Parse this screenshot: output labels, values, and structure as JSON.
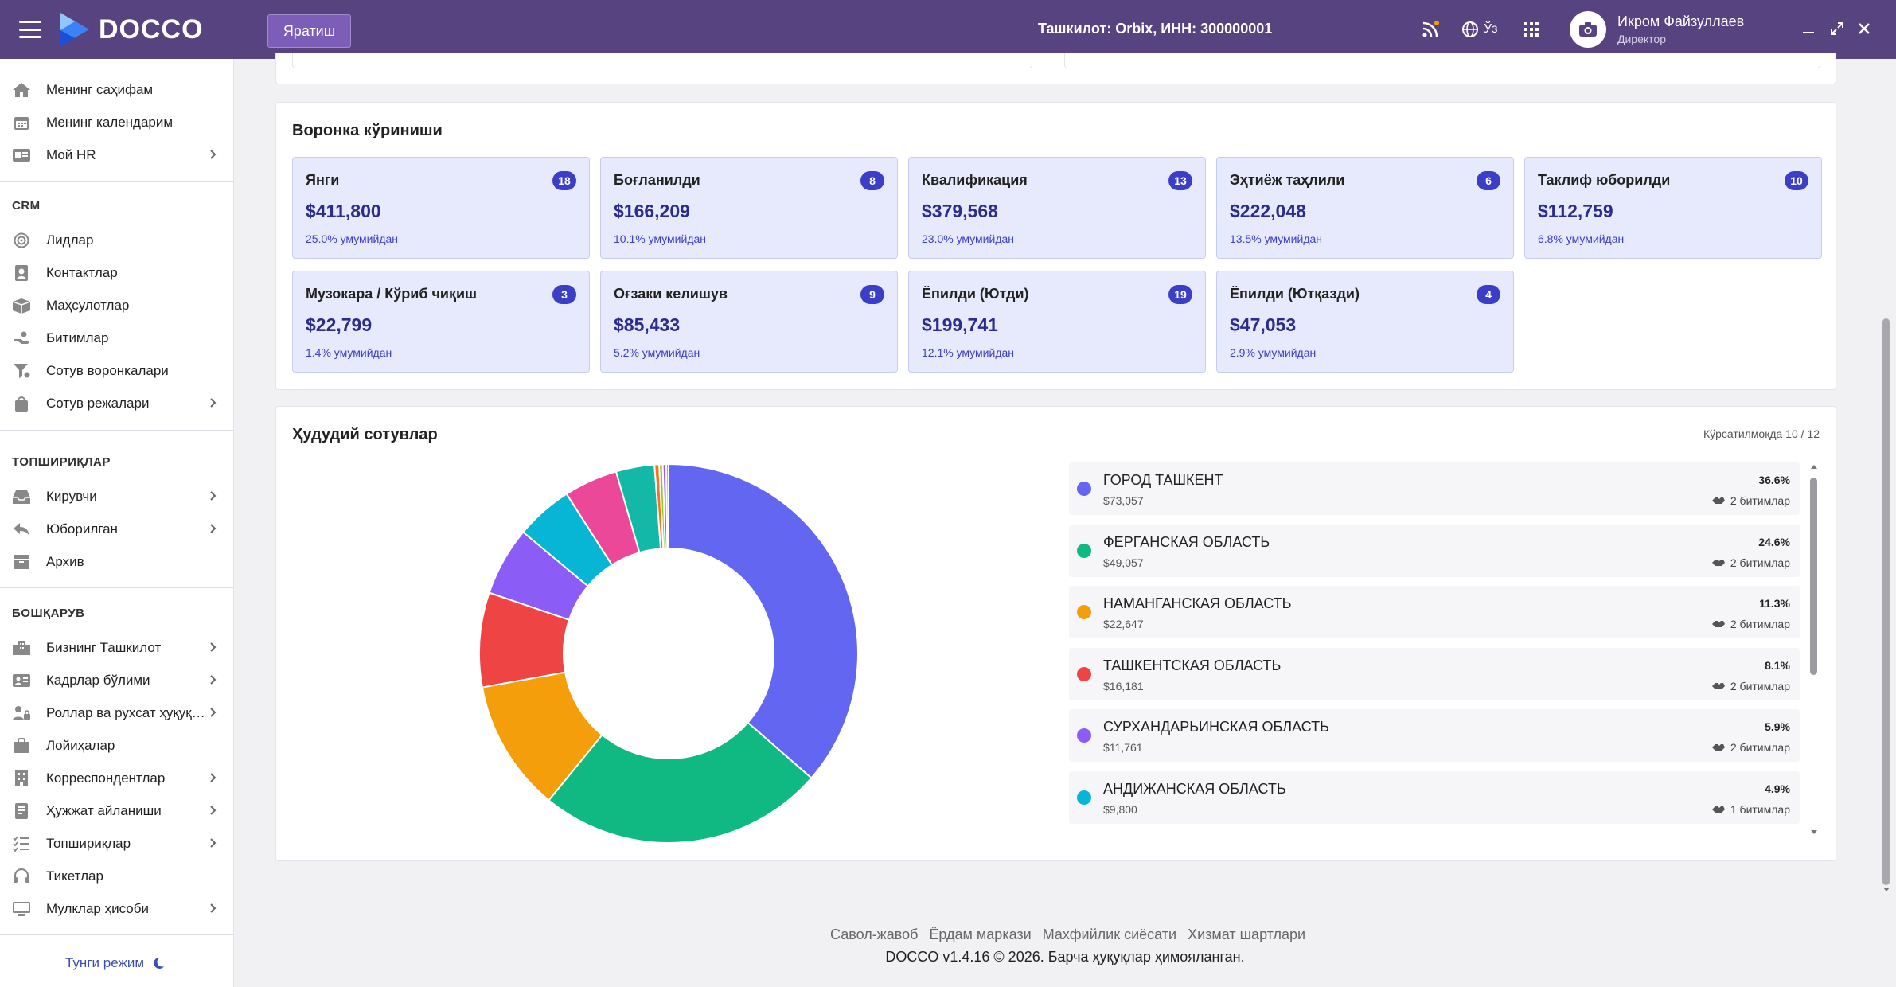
{
  "header": {
    "app_name": "DOCCO",
    "create_label": "Яратиш",
    "org_info": "Ташкилот: Orbix,   ИНН: 300000001",
    "lang": "Ўз",
    "user_name": "Икром Файзуллаев",
    "user_role": "Директор"
  },
  "sidebar": {
    "top_items": [
      {
        "label": "Менинг саҳифам",
        "icon": "home-icon"
      },
      {
        "label": "Менинг календарим",
        "icon": "calendar-icon"
      },
      {
        "label": "Мой HR",
        "icon": "id-card-icon"
      }
    ],
    "crm_title": "CRM",
    "crm_items": [
      {
        "label": "Лидлар",
        "icon": "target-icon"
      },
      {
        "label": "Контактлар",
        "icon": "contact-icon"
      },
      {
        "label": "Маҳсулотлар",
        "icon": "box-icon"
      },
      {
        "label": "Битимлар",
        "icon": "handshake-icon"
      },
      {
        "label": "Сотув воронкалари",
        "icon": "funnel-icon"
      },
      {
        "label": "Сотув режалари",
        "icon": "bag-icon"
      }
    ],
    "tasks_title": "ТОПШИРИҚЛАР",
    "tasks_items": [
      {
        "label": "Кирувчи",
        "icon": "inbox-icon"
      },
      {
        "label": "Юборилган",
        "icon": "reply-icon"
      },
      {
        "label": "Архив",
        "icon": "archive-icon"
      }
    ],
    "manage_title": "БОШҚАРУВ",
    "manage_items": [
      {
        "label": "Бизнинг Ташкилот",
        "icon": "building-icon"
      },
      {
        "label": "Кадрлар бўлими",
        "icon": "staff-icon"
      },
      {
        "label": "Роллар ва рухсат ҳуқуқлари",
        "icon": "user-lock-icon"
      },
      {
        "label": "Лойиҳалар",
        "icon": "briefcase-icon"
      },
      {
        "label": "Корреспондентлар",
        "icon": "office-icon"
      },
      {
        "label": "Ҳужжат айланиши",
        "icon": "document-flow-icon"
      },
      {
        "label": "Топшириқлар",
        "icon": "task-list-icon"
      },
      {
        "label": "Тикетлар",
        "icon": "headset-icon"
      },
      {
        "label": "Мулклар ҳисоби",
        "icon": "monitor-icon"
      }
    ],
    "night_mode": "Тунги режим"
  },
  "funnel": {
    "title": "Воронка кўриниши",
    "stages": [
      {
        "name": "Янги",
        "count": "18",
        "amount": "$411,800",
        "share": "25.0% умумийдан"
      },
      {
        "name": "Боғланилди",
        "count": "8",
        "amount": "$166,209",
        "share": "10.1% умумийдан"
      },
      {
        "name": "Квалификация",
        "count": "13",
        "amount": "$379,568",
        "share": "23.0% умумийдан"
      },
      {
        "name": "Эҳтиёж таҳлили",
        "count": "6",
        "amount": "$222,048",
        "share": "13.5% умумийдан"
      },
      {
        "name": "Таклиф юборилди",
        "count": "10",
        "amount": "$112,759",
        "share": "6.8% умумийдан"
      },
      {
        "name": "Музокара / Кўриб чиқиш",
        "count": "3",
        "amount": "$22,799",
        "share": "1.4% умумийдан"
      },
      {
        "name": "Оғзаки келишув",
        "count": "9",
        "amount": "$85,433",
        "share": "5.2% умумийдан"
      },
      {
        "name": "Ёпилди (Ютди)",
        "count": "19",
        "amount": "$199,741",
        "share": "12.1% умумийдан"
      },
      {
        "name": "Ёпилди (Ютқазди)",
        "count": "4",
        "amount": "$47,053",
        "share": "2.9% умумийдан"
      }
    ]
  },
  "regional": {
    "title": "Ҳудудий сотувлар",
    "showing": "Кўрсатилмоқда 10 / 12",
    "regions": [
      {
        "name": "ГОРОД ТАШКЕНТ",
        "amount": "$73,057",
        "pct": "36.6%",
        "deals": "2 битимлар",
        "color": "#6366f1"
      },
      {
        "name": "ФЕРГАНСКАЯ ОБЛАСТЬ",
        "amount": "$49,057",
        "pct": "24.6%",
        "deals": "2 битимлар",
        "color": "#10b981"
      },
      {
        "name": "НАМАНГАНСКАЯ ОБЛАСТЬ",
        "amount": "$22,647",
        "pct": "11.3%",
        "deals": "2 битимлар",
        "color": "#f59e0b"
      },
      {
        "name": "ТАШКЕНТСКАЯ ОБЛАСТЬ",
        "amount": "$16,181",
        "pct": "8.1%",
        "deals": "2 битимлар",
        "color": "#ef4444"
      },
      {
        "name": "СУРХАНДАРЬИНСКАЯ ОБЛАСТЬ",
        "amount": "$11,761",
        "pct": "5.9%",
        "deals": "2 битимлар",
        "color": "#8b5cf6"
      },
      {
        "name": "АНДИЖАНСКАЯ ОБЛАСТЬ",
        "amount": "$9,800",
        "pct": "4.9%",
        "deals": "1 битимлар",
        "color": "#06b6d4"
      }
    ]
  },
  "chart_data": {
    "type": "pie",
    "categories": [
      "ГОРОД ТАШКЕНТ",
      "ФЕРГАНСКАЯ ОБЛАСТЬ",
      "НАМАНГАНСКАЯ ОБЛАСТЬ",
      "ТАШКЕНТСКАЯ ОБЛАСТЬ",
      "СУРХАНДАРЬИНСКАЯ ОБЛАСТЬ",
      "АНДИЖАНСКАЯ ОБЛАСТЬ",
      "",
      "",
      "",
      "",
      "",
      ""
    ],
    "values": [
      36.6,
      24.6,
      11.3,
      8.1,
      5.9,
      4.9,
      4.6,
      3.3,
      0.4,
      0.3,
      0.3,
      0.2
    ],
    "colors": [
      "#6366f1",
      "#10b981",
      "#f59e0b",
      "#ef4444",
      "#8b5cf6",
      "#06b6d4",
      "#ec4899",
      "#14b8a6",
      "#f97316",
      "#84cc16",
      "#a855f7",
      "#94a3b8"
    ],
    "donut": true,
    "legend": "right"
  },
  "footer": {
    "links": [
      "Савол-жавоб",
      "Ёрдам маркази",
      "Махфийлик сиёсати",
      "Хизмат шартлари"
    ],
    "copyright": "DOCCO v1.4.16 © 2026. Барча ҳуқуқлар ҳимояланган."
  }
}
